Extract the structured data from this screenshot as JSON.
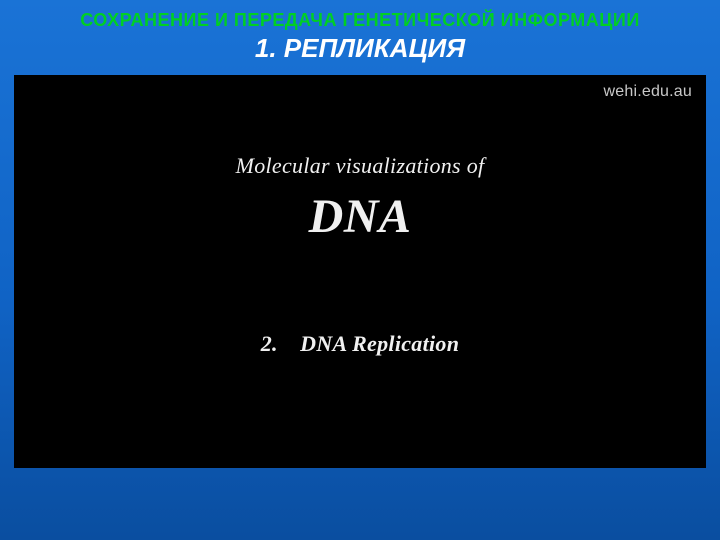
{
  "slide": {
    "background_top_color": "#1a73d6",
    "background_mid_color": "#1063c5",
    "background_bottom_color": "#0a4ea0",
    "header": {
      "supertitle": "СОХРАНЕНИЕ И ПЕРЕДАЧА ГЕНЕТИЧЕСКОЙ ИНФОРМАЦИИ",
      "supertitle_color": "#00d023",
      "supertitle_fontsize": 18,
      "title": "1. РЕПЛИКАЦИЯ",
      "title_color": "#ffffff",
      "title_fontsize": 26,
      "title_style": "italic bold"
    },
    "video": {
      "background_color": "#000000",
      "text_color": "#f0f0f0",
      "watermark": "wehi.edu.au",
      "watermark_color": "#c8c8c8",
      "watermark_fontsize": 16,
      "line1": "Molecular visualizations of",
      "line1_fontsize": 22,
      "line2": "DNA",
      "line2_fontsize": 48,
      "caption": "2. DNA Replication",
      "caption_fontsize": 22,
      "font_family": "Georgia serif italic"
    }
  }
}
